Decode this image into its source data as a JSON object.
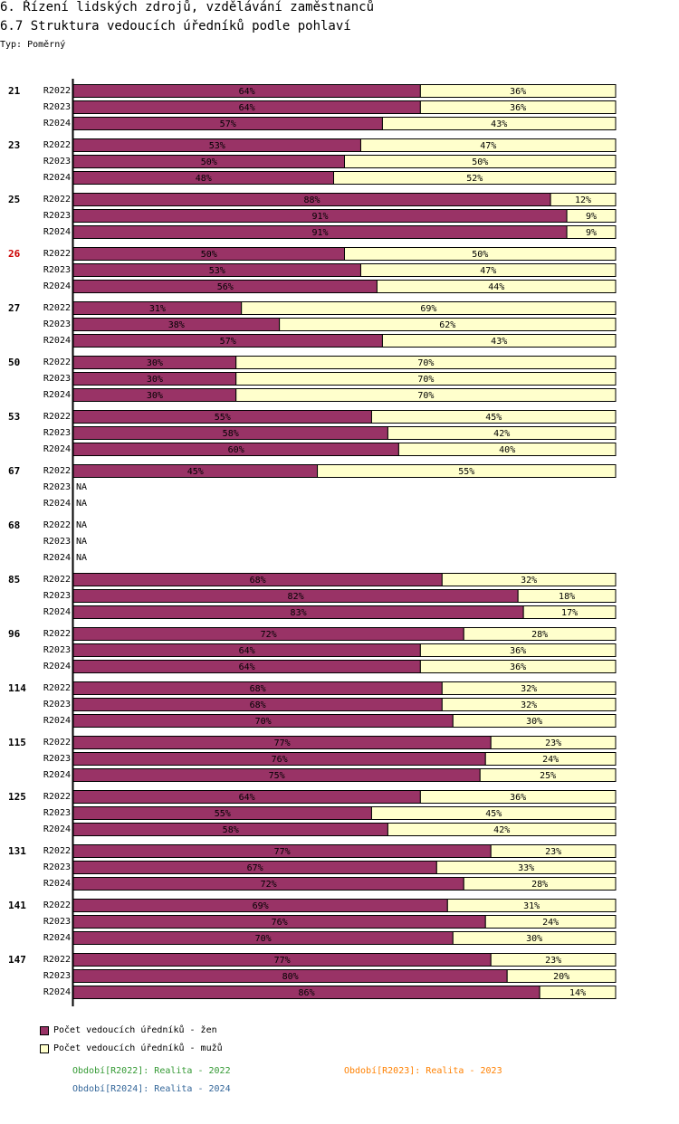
{
  "header": {
    "title": "6. Řízení lidských zdrojů, vzdělávání zaměstnanců",
    "subtitle": "6.7 Struktura vedoucích úředníků podle pohlaví",
    "type": "Typ: Poměrný"
  },
  "colors": {
    "women": "#993366",
    "men": "#ffffcc",
    "highlight": "#cc0000",
    "p2022": "#339933",
    "p2023": "#ff8000",
    "p2024": "#336699"
  },
  "legend": {
    "women": "Počet vedoucích úředníků - žen",
    "men": "Počet vedoucích úředníků - mužů",
    "p2022": "Období[R2022]: Realita - 2022",
    "p2023": "Období[R2023]: Realita - 2023",
    "p2024": "Období[R2024]: Realita - 2024"
  },
  "chart_data": {
    "type": "bar",
    "orientation": "horizontal",
    "stacked": "percent",
    "series": [
      "Počet vedoucích úředníků - žen",
      "Počet vedoucích úředníků - mužů"
    ],
    "periods": [
      "R2022",
      "R2023",
      "R2024"
    ],
    "na_label": "NA",
    "groups": [
      {
        "label": "21",
        "highlight": false,
        "women": [
          64,
          64,
          57
        ],
        "men": [
          36,
          36,
          43
        ]
      },
      {
        "label": "23",
        "highlight": false,
        "women": [
          53,
          50,
          48
        ],
        "men": [
          47,
          50,
          52
        ]
      },
      {
        "label": "25",
        "highlight": false,
        "women": [
          88,
          91,
          91
        ],
        "men": [
          12,
          9,
          9
        ]
      },
      {
        "label": "26",
        "highlight": true,
        "women": [
          50,
          53,
          56
        ],
        "men": [
          50,
          47,
          44
        ]
      },
      {
        "label": "27",
        "highlight": false,
        "women": [
          31,
          38,
          57
        ],
        "men": [
          69,
          62,
          43
        ]
      },
      {
        "label": "50",
        "highlight": false,
        "women": [
          30,
          30,
          30
        ],
        "men": [
          70,
          70,
          70
        ]
      },
      {
        "label": "53",
        "highlight": false,
        "women": [
          55,
          58,
          60
        ],
        "men": [
          45,
          42,
          40
        ]
      },
      {
        "label": "67",
        "highlight": false,
        "women": [
          45,
          null,
          null
        ],
        "men": [
          55,
          null,
          null
        ]
      },
      {
        "label": "68",
        "highlight": false,
        "women": [
          null,
          null,
          null
        ],
        "men": [
          null,
          null,
          null
        ]
      },
      {
        "label": "85",
        "highlight": false,
        "women": [
          68,
          82,
          83
        ],
        "men": [
          32,
          18,
          17
        ]
      },
      {
        "label": "96",
        "highlight": false,
        "women": [
          72,
          64,
          64
        ],
        "men": [
          28,
          36,
          36
        ]
      },
      {
        "label": "114",
        "highlight": false,
        "women": [
          68,
          68,
          70
        ],
        "men": [
          32,
          32,
          30
        ]
      },
      {
        "label": "115",
        "highlight": false,
        "women": [
          77,
          76,
          75
        ],
        "men": [
          23,
          24,
          25
        ]
      },
      {
        "label": "125",
        "highlight": false,
        "women": [
          64,
          55,
          58
        ],
        "men": [
          36,
          45,
          42
        ]
      },
      {
        "label": "131",
        "highlight": false,
        "women": [
          77,
          67,
          72
        ],
        "men": [
          23,
          33,
          28
        ]
      },
      {
        "label": "141",
        "highlight": false,
        "women": [
          69,
          76,
          70
        ],
        "men": [
          31,
          24,
          30
        ]
      },
      {
        "label": "147",
        "highlight": false,
        "women": [
          77,
          80,
          86
        ],
        "men": [
          23,
          20,
          14
        ]
      }
    ]
  }
}
